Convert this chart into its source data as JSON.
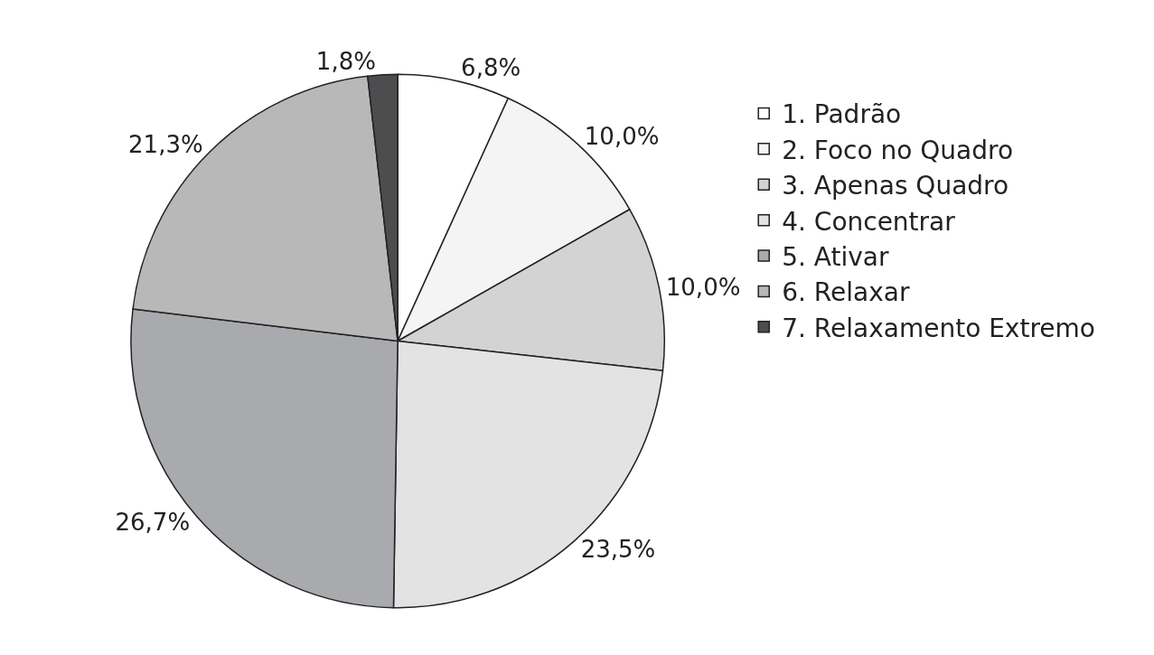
{
  "chart_data": {
    "type": "pie",
    "categories": [
      "1. Padrão",
      "2. Foco no Quadro",
      "3. Apenas Quadro",
      "4. Concentrar",
      "5. Ativar",
      "6. Relaxar",
      "7. Relaxamento Extremo"
    ],
    "values": [
      6.8,
      10.0,
      10.0,
      23.5,
      26.7,
      21.3,
      1.8
    ],
    "value_labels": [
      "6,8%",
      "10,0%",
      "10,0%",
      "23,5%",
      "26,7%",
      "21,3%",
      "1,8%"
    ],
    "colors": [
      "#ffffff",
      "#f4f4f4",
      "#d3d3d3",
      "#e3e3e3",
      "#a9aaad",
      "#b8b8b8",
      "#4d4d4f"
    ],
    "legend": "top right"
  }
}
